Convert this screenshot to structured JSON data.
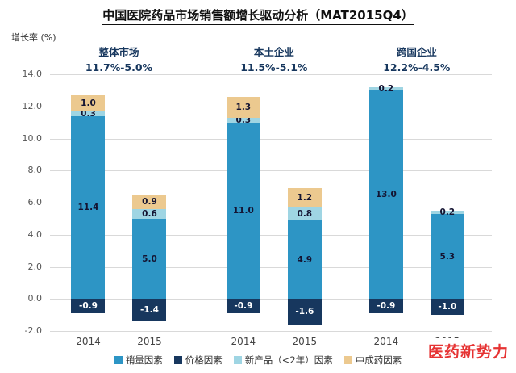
{
  "title": "中国医院药品市场销售额增长驱动分析（MAT2015Q4）",
  "watermark": "医药新势力",
  "chart_data": {
    "type": "bar",
    "stacked": true,
    "ylabel": "增长率 (%)",
    "ylim": [
      -2,
      14
    ],
    "ytick_step": 2,
    "grid": true,
    "legend_position": "bottom",
    "legend": [
      {
        "key": "volume",
        "label": "销量因素",
        "color": "#2D95C5"
      },
      {
        "key": "price",
        "label": "价格因素",
        "color": "#17375E"
      },
      {
        "key": "new_product",
        "label": "新产品（<2年）因素",
        "color": "#9FD5E3"
      },
      {
        "key": "tcm",
        "label": "中成药因素",
        "color": "#ECC98F"
      }
    ],
    "stack_order": [
      "volume",
      "new_product",
      "tcm",
      "price"
    ],
    "groups": [
      {
        "name": "整体市场",
        "range_label": "11.7%-5.0%",
        "bars": [
          {
            "x": "2014",
            "values": {
              "volume": 11.4,
              "new_product": 0.3,
              "tcm": 1.0,
              "price": -0.9
            }
          },
          {
            "x": "2015",
            "values": {
              "volume": 5.0,
              "new_product": 0.6,
              "tcm": 0.9,
              "price": -1.4
            }
          }
        ]
      },
      {
        "name": "本土企业",
        "range_label": "11.5%-5.1%",
        "bars": [
          {
            "x": "2014",
            "values": {
              "volume": 11.0,
              "new_product": 0.3,
              "tcm": 1.3,
              "price": -0.9
            }
          },
          {
            "x": "2015",
            "values": {
              "volume": 4.9,
              "new_product": 0.8,
              "tcm": 1.2,
              "price": -1.6
            }
          }
        ]
      },
      {
        "name": "跨国企业",
        "range_label": "12.2%-4.5%",
        "bars": [
          {
            "x": "2014",
            "values": {
              "volume": 13.0,
              "new_product": 0.2,
              "price": -0.9
            }
          },
          {
            "x": "2015",
            "values": {
              "volume": 5.3,
              "new_product": 0.2,
              "price": -1.0
            }
          }
        ]
      }
    ]
  }
}
